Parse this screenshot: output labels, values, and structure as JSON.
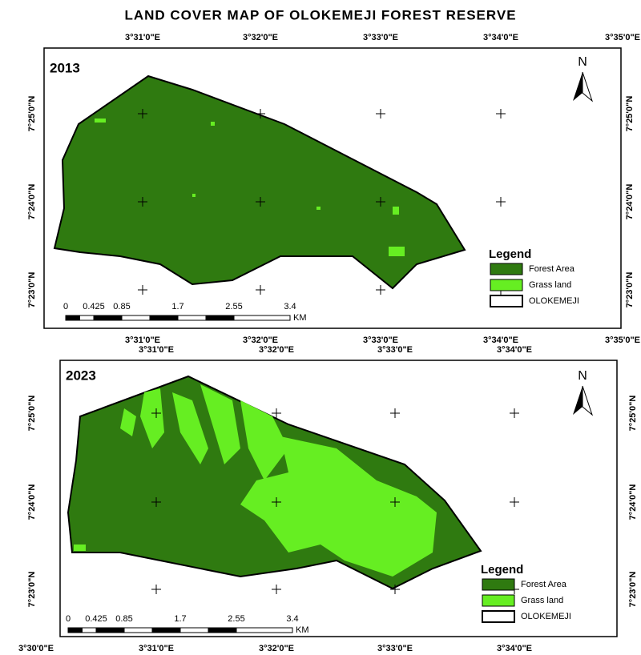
{
  "title": "LAND COVER MAP OF OLOKEMEJI FOREST RESERVE",
  "panels": [
    {
      "year": "2013",
      "top_labels": [
        "3°31'0\"E",
        "3°32'0\"E",
        "3°33'0\"E",
        "3°34'0\"E",
        "3°35'0\"E"
      ],
      "bottom_labels": [
        "3°31'0\"E",
        "3°32'0\"E",
        "3°33'0\"E",
        "3°34'0\"E",
        "3°35'0\"E"
      ],
      "left_labels": [
        "7°25'0\"N",
        "7°24'0\"N",
        "7°23'0\"N"
      ],
      "right_labels": [
        "7°25'0\"N",
        "7°24'0\"N",
        "7°23'0\"N"
      ],
      "north": "N",
      "legend": {
        "title": "Legend",
        "items": [
          "Forest Area",
          "Grass land",
          "OLOKEMEJI"
        ]
      },
      "scale": {
        "labels": [
          "0",
          "0.425",
          "0.85",
          "1.7",
          "2.55",
          "3.4"
        ],
        "unit": "KM"
      }
    },
    {
      "year": "2023",
      "top_labels": [
        "3°31'0\"E",
        "3°32'0\"E",
        "3°33'0\"E",
        "3°34'0\"E"
      ],
      "bottom_labels": [
        "3°30'0\"E",
        "3°31'0\"E",
        "3°32'0\"E",
        "3°33'0\"E",
        "3°34'0\"E"
      ],
      "left_labels": [
        "7°25'0\"N",
        "7°24'0\"N",
        "7°23'0\"N"
      ],
      "right_labels": [
        "7°25'0\"N",
        "7°24'0\"N",
        "7°23'0\"N"
      ],
      "north": "N",
      "legend": {
        "title": "Legend",
        "items": [
          "Forest Area",
          "Grass land",
          "OLOKEMEJI"
        ]
      },
      "scale": {
        "labels": [
          "0",
          "0.425",
          "0.85",
          "1.7",
          "2.55",
          "3.4"
        ],
        "unit": "KM"
      }
    }
  ]
}
